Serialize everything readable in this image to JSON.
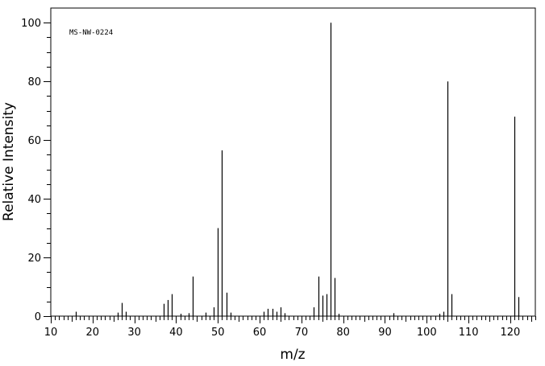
{
  "chart_data": {
    "type": "bar",
    "title": "",
    "annotation": "MS-NW-0224",
    "xlabel": "m/z",
    "ylabel": "Relative Intensity",
    "xlim": [
      10,
      126
    ],
    "ylim": [
      0,
      105
    ],
    "x_ticks": [
      10,
      20,
      30,
      40,
      50,
      60,
      70,
      80,
      90,
      100,
      110,
      120
    ],
    "y_ticks": [
      0,
      20,
      40,
      60,
      80,
      100
    ],
    "grid": false,
    "peaks": [
      {
        "mz": 16,
        "intensity": 1.5
      },
      {
        "mz": 26,
        "intensity": 1.2
      },
      {
        "mz": 27,
        "intensity": 4.5
      },
      {
        "mz": 28,
        "intensity": 1.5
      },
      {
        "mz": 37,
        "intensity": 4.2
      },
      {
        "mz": 38,
        "intensity": 5.5
      },
      {
        "mz": 39,
        "intensity": 7.5
      },
      {
        "mz": 41,
        "intensity": 0.8
      },
      {
        "mz": 43,
        "intensity": 1.0
      },
      {
        "mz": 44,
        "intensity": 13.5
      },
      {
        "mz": 47,
        "intensity": 1.2
      },
      {
        "mz": 49,
        "intensity": 3.0
      },
      {
        "mz": 50,
        "intensity": 30.0
      },
      {
        "mz": 51,
        "intensity": 56.5
      },
      {
        "mz": 52,
        "intensity": 8.0
      },
      {
        "mz": 53,
        "intensity": 1.2
      },
      {
        "mz": 61,
        "intensity": 1.5
      },
      {
        "mz": 62,
        "intensity": 2.5
      },
      {
        "mz": 63,
        "intensity": 2.5
      },
      {
        "mz": 64,
        "intensity": 1.5
      },
      {
        "mz": 65,
        "intensity": 3.0
      },
      {
        "mz": 66,
        "intensity": 1.0
      },
      {
        "mz": 73,
        "intensity": 3.0
      },
      {
        "mz": 74,
        "intensity": 13.5
      },
      {
        "mz": 75,
        "intensity": 7.0
      },
      {
        "mz": 76,
        "intensity": 7.5
      },
      {
        "mz": 77,
        "intensity": 100.0
      },
      {
        "mz": 78,
        "intensity": 13.0
      },
      {
        "mz": 79,
        "intensity": 0.8
      },
      {
        "mz": 92,
        "intensity": 1.0
      },
      {
        "mz": 103,
        "intensity": 0.8
      },
      {
        "mz": 104,
        "intensity": 1.5
      },
      {
        "mz": 105,
        "intensity": 80.0
      },
      {
        "mz": 106,
        "intensity": 7.5
      },
      {
        "mz": 121,
        "intensity": 68.0
      },
      {
        "mz": 122,
        "intensity": 6.5
      }
    ]
  }
}
